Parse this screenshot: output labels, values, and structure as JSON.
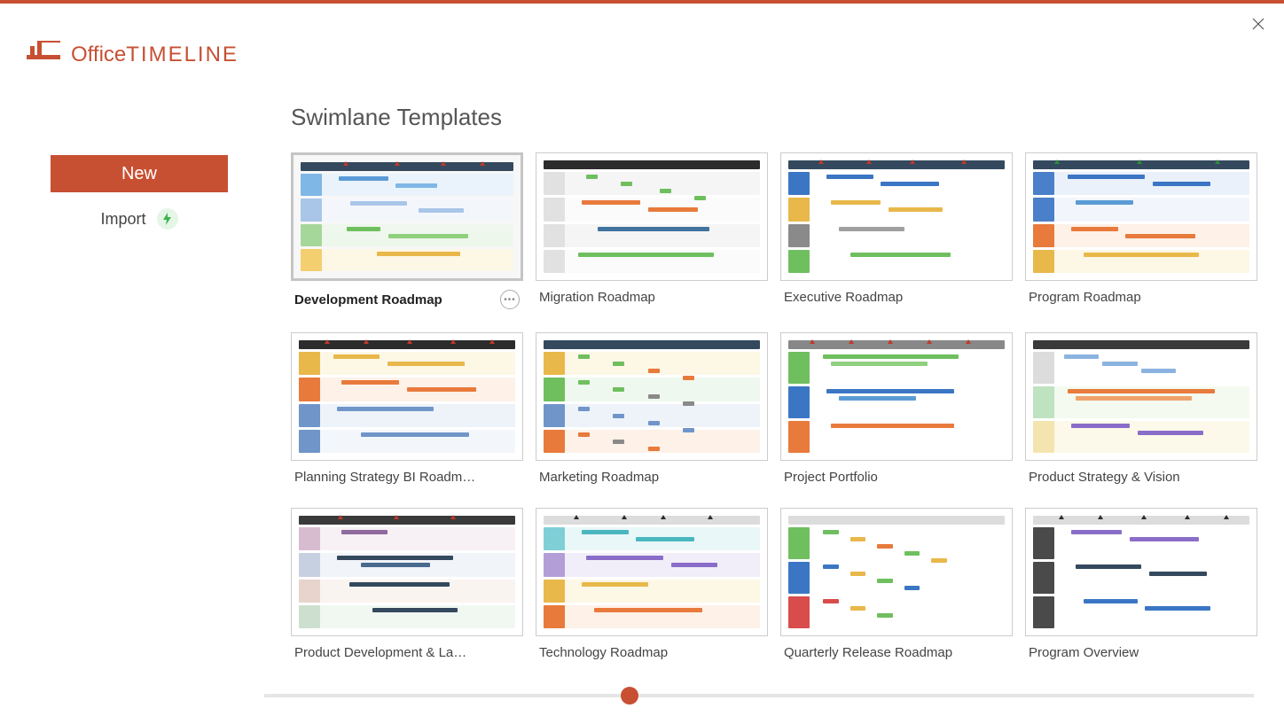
{
  "brand": {
    "name_light": "Office",
    "name_bold": "TIMELINE",
    "color": "#c75033"
  },
  "sidebar": {
    "new_label": "New",
    "import_label": "Import",
    "bolt_bg": "#e5f6e7",
    "bolt_color": "#3ab54a"
  },
  "page": {
    "title": "Swimlane Templates"
  },
  "scrollbar": {
    "position_pct": 36
  },
  "templates": [
    {
      "id": "development-roadmap",
      "label": "Development Roadmap",
      "selected": true,
      "preview": {
        "header_color": "#34495e",
        "markers": [
          20,
          44,
          66,
          84
        ],
        "marker_color": "#c0392b",
        "lanes": [
          {
            "label_color": "#7fb7e6",
            "bg": "#eaf3fb",
            "bars": [
              {
                "l": 8,
                "w": 26,
                "c": "#5a9bd5"
              },
              {
                "l": 38,
                "w": 22,
                "c": "#7fb7e6"
              }
            ]
          },
          {
            "label_color": "#a9c6e8",
            "bg": "#f3f7fc",
            "bars": [
              {
                "l": 14,
                "w": 30,
                "c": "#a9c6e8"
              },
              {
                "l": 50,
                "w": 24,
                "c": "#a9c6e8"
              }
            ]
          },
          {
            "label_color": "#a6d79a",
            "bg": "#eef7ec",
            "bars": [
              {
                "l": 12,
                "w": 18,
                "c": "#6fbf5f"
              },
              {
                "l": 34,
                "w": 42,
                "c": "#8fd07e"
              }
            ]
          },
          {
            "label_color": "#f4cf6f",
            "bg": "#fdf7e6",
            "bars": [
              {
                "l": 28,
                "w": 44,
                "c": "#e8b84a"
              }
            ]
          }
        ]
      }
    },
    {
      "id": "migration-roadmap",
      "label": "Migration Roadmap",
      "selected": false,
      "preview": {
        "header_color": "#2c2c2c",
        "markers": [],
        "marker_color": "#000",
        "lanes": [
          {
            "label_color": "#e1e1e1",
            "bg": "#f5f5f5",
            "bars": [
              {
                "l": 10,
                "w": 6,
                "c": "#6fbf5f"
              },
              {
                "l": 28,
                "w": 6,
                "c": "#6fbf5f"
              },
              {
                "l": 48,
                "w": 6,
                "c": "#6fbf5f"
              },
              {
                "l": 66,
                "w": 6,
                "c": "#6fbf5f"
              }
            ]
          },
          {
            "label_color": "#e1e1e1",
            "bg": "#fbfbfb",
            "bars": [
              {
                "l": 8,
                "w": 30,
                "c": "#e87a3c"
              },
              {
                "l": 42,
                "w": 26,
                "c": "#e87a3c"
              }
            ]
          },
          {
            "label_color": "#e1e1e1",
            "bg": "#f5f5f5",
            "bars": [
              {
                "l": 16,
                "w": 58,
                "c": "#40739e"
              }
            ]
          },
          {
            "label_color": "#e1e1e1",
            "bg": "#fbfbfb",
            "bars": [
              {
                "l": 6,
                "w": 70,
                "c": "#6fbf5f"
              }
            ]
          }
        ]
      }
    },
    {
      "id": "executive-roadmap",
      "label": "Executive Roadmap",
      "selected": false,
      "preview": {
        "header_color": "#34495e",
        "markers": [
          14,
          36,
          56,
          80
        ],
        "marker_color": "#c0392b",
        "lanes": [
          {
            "label_color": "#3b76c4",
            "bg": "#fff",
            "bars": [
              {
                "l": 8,
                "w": 24,
                "c": "#3b76c4"
              },
              {
                "l": 36,
                "w": 30,
                "c": "#3b76c4"
              }
            ]
          },
          {
            "label_color": "#e8b84a",
            "bg": "#fff",
            "bars": [
              {
                "l": 10,
                "w": 26,
                "c": "#e8b84a"
              },
              {
                "l": 40,
                "w": 28,
                "c": "#e8b84a"
              }
            ]
          },
          {
            "label_color": "#8a8a8a",
            "bg": "#fff",
            "bars": [
              {
                "l": 14,
                "w": 34,
                "c": "#a0a0a0"
              }
            ]
          },
          {
            "label_color": "#6fbf5f",
            "bg": "#fff",
            "bars": [
              {
                "l": 20,
                "w": 52,
                "c": "#6fbf5f"
              }
            ]
          }
        ]
      }
    },
    {
      "id": "program-roadmap",
      "label": "Program Roadmap",
      "selected": false,
      "preview": {
        "header_color": "#34495e",
        "markers": [
          10,
          48,
          84
        ],
        "marker_color": "#2d8f3a",
        "lanes": [
          {
            "label_color": "#4a7fc9",
            "bg": "#eaf1fa",
            "bars": [
              {
                "l": 6,
                "w": 40,
                "c": "#3b76c4"
              },
              {
                "l": 50,
                "w": 30,
                "c": "#3b76c4"
              }
            ]
          },
          {
            "label_color": "#4a7fc9",
            "bg": "#f2f6fc",
            "bars": [
              {
                "l": 10,
                "w": 30,
                "c": "#5a9bd5"
              }
            ]
          },
          {
            "label_color": "#e87a3c",
            "bg": "#fdf1e8",
            "bars": [
              {
                "l": 8,
                "w": 24,
                "c": "#e87a3c"
              },
              {
                "l": 36,
                "w": 36,
                "c": "#e87a3c"
              }
            ]
          },
          {
            "label_color": "#e8b84a",
            "bg": "#fdf7e6",
            "bars": [
              {
                "l": 14,
                "w": 60,
                "c": "#e8b84a"
              }
            ]
          }
        ]
      }
    },
    {
      "id": "planning-strategy-bi",
      "label": "Planning Strategy BI Roadm…",
      "selected": false,
      "preview": {
        "header_color": "#2c2c2c",
        "markers": [
          12,
          30,
          50,
          70,
          88
        ],
        "marker_color": "#c0392b",
        "lanes": [
          {
            "label_color": "#e8b84a",
            "bg": "#fdf7e6",
            "bars": [
              {
                "l": 6,
                "w": 24,
                "c": "#e8b84a"
              },
              {
                "l": 34,
                "w": 40,
                "c": "#e8b84a"
              }
            ]
          },
          {
            "label_color": "#e87a3c",
            "bg": "#fdf1e8",
            "bars": [
              {
                "l": 10,
                "w": 30,
                "c": "#e87a3c"
              },
              {
                "l": 44,
                "w": 36,
                "c": "#e87a3c"
              }
            ]
          },
          {
            "label_color": "#6f95c9",
            "bg": "#eef3fa",
            "bars": [
              {
                "l": 8,
                "w": 50,
                "c": "#6f95c9"
              }
            ]
          },
          {
            "label_color": "#6f95c9",
            "bg": "#f3f7fc",
            "bars": [
              {
                "l": 20,
                "w": 56,
                "c": "#6f95c9"
              }
            ]
          }
        ]
      }
    },
    {
      "id": "marketing-roadmap",
      "label": "Marketing Roadmap",
      "selected": false,
      "preview": {
        "header_color": "#34495e",
        "markers": [],
        "marker_color": "#000",
        "lanes": [
          {
            "label_color": "#e8b84a",
            "bg": "#fdf7e6",
            "bars": [
              {
                "l": 6,
                "w": 6,
                "c": "#6fbf5f"
              },
              {
                "l": 24,
                "w": 6,
                "c": "#6fbf5f"
              },
              {
                "l": 42,
                "w": 6,
                "c": "#e87a3c"
              },
              {
                "l": 60,
                "w": 6,
                "c": "#e87a3c"
              }
            ]
          },
          {
            "label_color": "#6fbf5f",
            "bg": "#eff8ee",
            "bars": [
              {
                "l": 6,
                "w": 6,
                "c": "#6fbf5f"
              },
              {
                "l": 24,
                "w": 6,
                "c": "#6fbf5f"
              },
              {
                "l": 42,
                "w": 6,
                "c": "#8a8a8a"
              },
              {
                "l": 60,
                "w": 6,
                "c": "#8a8a8a"
              }
            ]
          },
          {
            "label_color": "#6f95c9",
            "bg": "#eef3fa",
            "bars": [
              {
                "l": 6,
                "w": 6,
                "c": "#6f95c9"
              },
              {
                "l": 24,
                "w": 6,
                "c": "#6f95c9"
              },
              {
                "l": 42,
                "w": 6,
                "c": "#6f95c9"
              },
              {
                "l": 60,
                "w": 6,
                "c": "#6f95c9"
              }
            ]
          },
          {
            "label_color": "#e87a3c",
            "bg": "#fdf1e8",
            "bars": [
              {
                "l": 6,
                "w": 6,
                "c": "#e87a3c"
              },
              {
                "l": 24,
                "w": 6,
                "c": "#8a8a8a"
              },
              {
                "l": 42,
                "w": 6,
                "c": "#e87a3c"
              }
            ]
          }
        ]
      }
    },
    {
      "id": "project-portfolio",
      "label": "Project Portfolio",
      "selected": false,
      "preview": {
        "header_color": "#888888",
        "markers": [
          10,
          28,
          46,
          64,
          82
        ],
        "marker_color": "#c0392b",
        "lanes": [
          {
            "label_color": "#6fbf5f",
            "bg": "#fff",
            "bars": [
              {
                "l": 6,
                "w": 70,
                "c": "#6fbf5f"
              },
              {
                "l": 10,
                "w": 50,
                "c": "#8fd07e"
              }
            ]
          },
          {
            "label_color": "#3b76c4",
            "bg": "#fff",
            "bars": [
              {
                "l": 8,
                "w": 66,
                "c": "#3b76c4"
              },
              {
                "l": 14,
                "w": 40,
                "c": "#5a9bd5"
              }
            ]
          },
          {
            "label_color": "#e87a3c",
            "bg": "#fff",
            "bars": [
              {
                "l": 10,
                "w": 64,
                "c": "#e87a3c"
              }
            ]
          }
        ]
      }
    },
    {
      "id": "product-strategy-vision",
      "label": "Product Strategy & Vision",
      "selected": false,
      "preview": {
        "header_color": "#3a3a3a",
        "markers": [],
        "marker_color": "#000",
        "lanes": [
          {
            "label_color": "#dcdcdc",
            "bg": "#fff",
            "bars": [
              {
                "l": 4,
                "w": 18,
                "c": "#8bb3e0"
              },
              {
                "l": 24,
                "w": 18,
                "c": "#8bb3e0"
              },
              {
                "l": 44,
                "w": 18,
                "c": "#8bb3e0"
              }
            ]
          },
          {
            "label_color": "#bfe2c0",
            "bg": "#f4faef",
            "bars": [
              {
                "l": 6,
                "w": 76,
                "c": "#e87a3c"
              },
              {
                "l": 10,
                "w": 60,
                "c": "#f0a26a"
              }
            ]
          },
          {
            "label_color": "#f4e5b0",
            "bg": "#fdf9ea",
            "bars": [
              {
                "l": 8,
                "w": 30,
                "c": "#8a6dc9"
              },
              {
                "l": 42,
                "w": 34,
                "c": "#8a6dc9"
              }
            ]
          }
        ]
      }
    },
    {
      "id": "product-development-launch",
      "label": "Product Development & La…",
      "selected": false,
      "preview": {
        "header_color": "#3a3a3a",
        "markers": [
          18,
          44,
          70
        ],
        "marker_color": "#c0392b",
        "lanes": [
          {
            "label_color": "#d7bcd0",
            "bg": "#f7f0f5",
            "bars": [
              {
                "l": 10,
                "w": 24,
                "c": "#8e6a9e"
              }
            ]
          },
          {
            "label_color": "#c7d0e0",
            "bg": "#f1f4f9",
            "bars": [
              {
                "l": 8,
                "w": 60,
                "c": "#34495e"
              },
              {
                "l": 20,
                "w": 36,
                "c": "#4a6a8e"
              }
            ]
          },
          {
            "label_color": "#e7d4cd",
            "bg": "#faf4f1",
            "bars": [
              {
                "l": 14,
                "w": 52,
                "c": "#34495e"
              }
            ]
          },
          {
            "label_color": "#cde0d0",
            "bg": "#f1f8f2",
            "bars": [
              {
                "l": 26,
                "w": 44,
                "c": "#34495e"
              }
            ]
          }
        ]
      }
    },
    {
      "id": "technology-roadmap",
      "label": "Technology Roadmap",
      "selected": false,
      "preview": {
        "header_color": "#dcdcdc",
        "markers": [
          14,
          36,
          54,
          76
        ],
        "marker_color": "#2c2c2c",
        "lanes": [
          {
            "label_color": "#7fd0d6",
            "bg": "#e9f7f8",
            "bars": [
              {
                "l": 8,
                "w": 24,
                "c": "#4ab7c0"
              },
              {
                "l": 36,
                "w": 30,
                "c": "#4ab7c0"
              }
            ]
          },
          {
            "label_color": "#b39ed8",
            "bg": "#f2eef9",
            "bars": [
              {
                "l": 10,
                "w": 40,
                "c": "#8a6dc9"
              },
              {
                "l": 54,
                "w": 24,
                "c": "#8a6dc9"
              }
            ]
          },
          {
            "label_color": "#e8b84a",
            "bg": "#fdf7e6",
            "bars": [
              {
                "l": 8,
                "w": 34,
                "c": "#e8b84a"
              }
            ]
          },
          {
            "label_color": "#e87a3c",
            "bg": "#fdf1e8",
            "bars": [
              {
                "l": 14,
                "w": 56,
                "c": "#e87a3c"
              }
            ]
          }
        ]
      }
    },
    {
      "id": "quarterly-release-roadmap",
      "label": "Quarterly Release Roadmap",
      "selected": false,
      "preview": {
        "header_color": "#dcdcdc",
        "markers": [],
        "marker_color": "#000",
        "lanes": [
          {
            "label_color": "#6fbf5f",
            "bg": "#fff",
            "bars": [
              {
                "l": 6,
                "w": 8,
                "c": "#6fbf5f"
              },
              {
                "l": 20,
                "w": 8,
                "c": "#e8b84a"
              },
              {
                "l": 34,
                "w": 8,
                "c": "#e87a3c"
              },
              {
                "l": 48,
                "w": 8,
                "c": "#6fbf5f"
              },
              {
                "l": 62,
                "w": 8,
                "c": "#e8b84a"
              }
            ]
          },
          {
            "label_color": "#3b76c4",
            "bg": "#fff",
            "bars": [
              {
                "l": 6,
                "w": 8,
                "c": "#3b76c4"
              },
              {
                "l": 20,
                "w": 8,
                "c": "#e8b84a"
              },
              {
                "l": 34,
                "w": 8,
                "c": "#6fbf5f"
              },
              {
                "l": 48,
                "w": 8,
                "c": "#3b76c4"
              }
            ]
          },
          {
            "label_color": "#d94c4c",
            "bg": "#fff",
            "bars": [
              {
                "l": 6,
                "w": 8,
                "c": "#d94c4c"
              },
              {
                "l": 20,
                "w": 8,
                "c": "#e8b84a"
              },
              {
                "l": 34,
                "w": 8,
                "c": "#6fbf5f"
              }
            ]
          }
        ]
      }
    },
    {
      "id": "program-overview",
      "label": "Program Overview",
      "selected": false,
      "preview": {
        "header_color": "#dcdcdc",
        "markers": [
          12,
          30,
          50,
          70,
          88
        ],
        "marker_color": "#2c2c2c",
        "lanes": [
          {
            "label_color": "#4a4a4a",
            "bg": "#fff",
            "bars": [
              {
                "l": 8,
                "w": 26,
                "c": "#8a6dc9"
              },
              {
                "l": 38,
                "w": 36,
                "c": "#8a6dc9"
              }
            ]
          },
          {
            "label_color": "#4a4a4a",
            "bg": "#fff",
            "bars": [
              {
                "l": 10,
                "w": 34,
                "c": "#34495e"
              },
              {
                "l": 48,
                "w": 30,
                "c": "#34495e"
              }
            ]
          },
          {
            "label_color": "#4a4a4a",
            "bg": "#fff",
            "bars": [
              {
                "l": 14,
                "w": 28,
                "c": "#3b76c4"
              },
              {
                "l": 46,
                "w": 34,
                "c": "#3b76c4"
              }
            ]
          }
        ]
      }
    }
  ]
}
